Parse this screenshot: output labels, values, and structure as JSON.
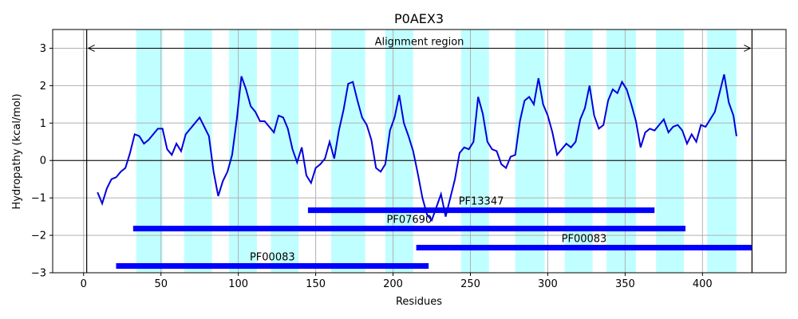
{
  "chart_data": {
    "type": "line",
    "title": "P0AEX3",
    "xlabel": "Residues",
    "ylabel": "Hydropathy (kcal/mol)",
    "xlim": [
      -20,
      454
    ],
    "ylim": [
      -3,
      3.5
    ],
    "xticks": [
      0,
      50,
      100,
      150,
      200,
      250,
      300,
      350,
      400
    ],
    "yticks": [
      -3,
      -2,
      -1,
      0,
      1,
      2,
      3
    ],
    "grid": true,
    "colors": {
      "line": "#0000dd",
      "bands": "#c0ffff",
      "domains": "#0000ff",
      "grid": "#b0b0b0"
    },
    "transmembrane_regions": [
      [
        34,
        51
      ],
      [
        65,
        83
      ],
      [
        94,
        112
      ],
      [
        121,
        139
      ],
      [
        160,
        182
      ],
      [
        195,
        213
      ],
      [
        244,
        262
      ],
      [
        279,
        298
      ],
      [
        311,
        329
      ],
      [
        338,
        357
      ],
      [
        370,
        388
      ],
      [
        403,
        422
      ]
    ],
    "alignment_region": {
      "label": "Alignment region",
      "start": 2,
      "end": 432,
      "y": 3.0
    },
    "domains": [
      {
        "name": "PF13347",
        "start": 145,
        "end": 369,
        "y": -1.33
      },
      {
        "name": "PF07690",
        "start": 32,
        "end": 389,
        "y": -1.82
      },
      {
        "name": "PF00083",
        "start": 215,
        "end": 432,
        "y": -2.33
      },
      {
        "name": "PF00083",
        "start": 21,
        "end": 223,
        "y": -2.82
      }
    ],
    "series": [
      {
        "x": [
          9,
          12,
          15,
          18,
          21,
          24,
          27,
          30,
          33,
          36,
          39,
          42,
          45,
          48,
          51,
          54,
          57,
          60,
          63,
          66,
          69,
          72,
          75,
          78,
          81,
          84,
          87,
          90,
          93,
          96,
          99,
          102,
          105,
          108,
          111,
          114,
          117,
          120,
          123,
          126,
          129,
          132,
          135,
          138,
          141,
          144,
          147,
          150,
          153,
          156,
          159,
          162,
          165,
          168,
          171,
          174,
          177,
          180,
          183,
          186,
          189,
          192,
          195,
          198,
          201,
          204,
          207,
          210,
          213,
          216,
          219,
          222,
          225,
          228,
          231,
          234,
          237,
          240,
          243,
          246,
          249,
          252,
          255,
          258,
          261,
          264,
          267,
          270,
          273,
          276,
          279,
          282,
          285,
          288,
          291,
          294,
          297,
          300,
          303,
          306,
          309,
          312,
          315,
          318,
          321,
          324,
          327,
          330,
          333,
          336,
          339,
          342,
          345,
          348,
          351,
          354,
          357,
          360,
          363,
          366,
          369,
          372,
          375,
          378,
          381,
          384,
          387,
          390,
          393,
          396,
          399,
          402,
          405,
          408,
          411,
          414,
          417,
          420,
          422
        ],
        "y": [
          -0.85,
          -1.15,
          -0.75,
          -0.5,
          -0.45,
          -0.3,
          -0.2,
          0.2,
          0.7,
          0.65,
          0.45,
          0.55,
          0.7,
          0.85,
          0.85,
          0.3,
          0.15,
          0.45,
          0.25,
          0.7,
          0.85,
          1.0,
          1.15,
          0.9,
          0.65,
          -0.3,
          -0.95,
          -0.55,
          -0.3,
          0.15,
          1.1,
          2.25,
          1.9,
          1.45,
          1.3,
          1.05,
          1.05,
          0.9,
          0.75,
          1.2,
          1.15,
          0.85,
          0.3,
          -0.05,
          0.35,
          -0.4,
          -0.6,
          -0.2,
          -0.1,
          0.05,
          0.5,
          0.05,
          0.8,
          1.35,
          2.05,
          2.1,
          1.6,
          1.15,
          0.95,
          0.55,
          -0.2,
          -0.3,
          -0.1,
          0.8,
          1.15,
          1.75,
          1.0,
          0.65,
          0.25,
          -0.35,
          -1.0,
          -1.45,
          -1.6,
          -1.25,
          -0.9,
          -1.5,
          -1.0,
          -0.5,
          0.2,
          0.35,
          0.3,
          0.5,
          1.7,
          1.25,
          0.5,
          0.3,
          0.25,
          -0.1,
          -0.2,
          0.1,
          0.15,
          1.05,
          1.6,
          1.7,
          1.5,
          2.2,
          1.5,
          1.2,
          0.75,
          0.15,
          0.3,
          0.45,
          0.35,
          0.5,
          1.1,
          1.4,
          2.0,
          1.2,
          0.85,
          0.95,
          1.6,
          1.9,
          1.8,
          2.1,
          1.9,
          1.5,
          1.05,
          0.35,
          0.75,
          0.85,
          0.8,
          0.95,
          1.1,
          0.75,
          0.9,
          0.95,
          0.8,
          0.45,
          0.7,
          0.5,
          0.95,
          0.9,
          1.1,
          1.3,
          1.8,
          2.3,
          1.55,
          1.2,
          0.65
        ]
      }
    ]
  }
}
